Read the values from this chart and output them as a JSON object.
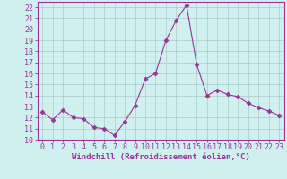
{
  "x": [
    0,
    1,
    2,
    3,
    4,
    5,
    6,
    7,
    8,
    9,
    10,
    11,
    12,
    13,
    14,
    15,
    16,
    17,
    18,
    19,
    20,
    21,
    22,
    23
  ],
  "y": [
    12.5,
    11.8,
    12.7,
    12.0,
    11.9,
    11.1,
    11.0,
    10.4,
    11.6,
    13.1,
    15.5,
    16.0,
    19.0,
    20.8,
    22.2,
    16.8,
    14.0,
    14.5,
    14.1,
    13.9,
    13.3,
    12.9,
    12.6,
    12.2
  ],
  "line_color": "#993399",
  "marker": "D",
  "marker_size": 2.5,
  "bg_color": "#cff0ee",
  "grid_color": "#aacccc",
  "xlabel": "Windchill (Refroidissement éolien,°C)",
  "xlabel_fontsize": 6.5,
  "tick_fontsize": 6,
  "ylim": [
    10,
    22.5
  ],
  "xlim": [
    -0.5,
    23.5
  ],
  "yticks": [
    10,
    11,
    12,
    13,
    14,
    15,
    16,
    17,
    18,
    19,
    20,
    21,
    22
  ],
  "xticks": [
    0,
    1,
    2,
    3,
    4,
    5,
    6,
    7,
    8,
    9,
    10,
    11,
    12,
    13,
    14,
    15,
    16,
    17,
    18,
    19,
    20,
    21,
    22,
    23
  ]
}
